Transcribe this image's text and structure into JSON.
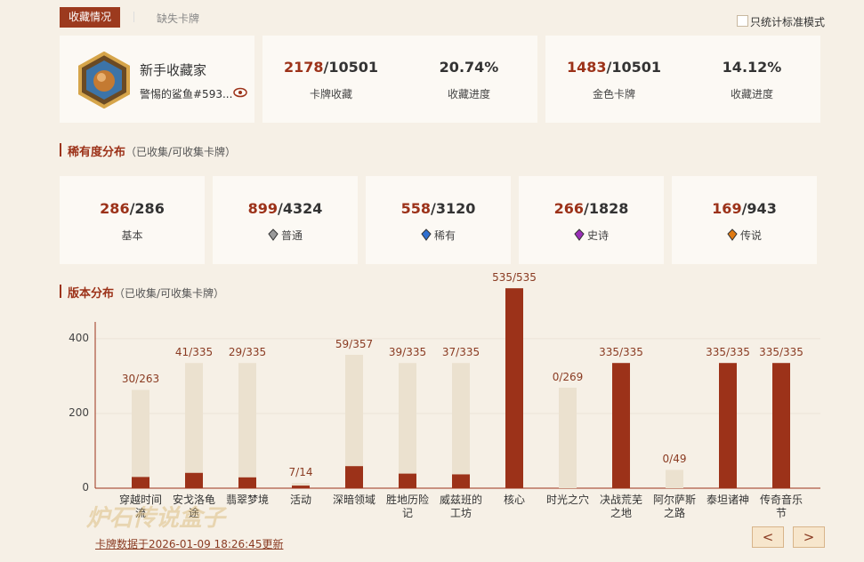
{
  "tabs": [
    "收藏情况",
    "缺失卡牌"
  ],
  "filter": "只统计标准模式",
  "profile": {
    "title": "新手收藏家",
    "name": "警惕的鲨鱼#593..."
  },
  "stats": [
    {
      "owned": "2178",
      "total": "/10501",
      "label": "卡牌收藏",
      "percent": "20.74%",
      "percent_label": "收藏进度"
    },
    {
      "owned": "1483",
      "total": "/10501",
      "label": "金色卡牌",
      "percent": "14.12%",
      "percent_label": "收藏进度"
    }
  ],
  "rarity_section": {
    "title": "稀有度分布",
    "note": "（已收集/可收集卡牌）"
  },
  "rarity": [
    {
      "owned": "286",
      "total": "/286",
      "label": "基本",
      "color": null
    },
    {
      "owned": "899",
      "total": "/4324",
      "label": "普通",
      "color": "#9a9a9a"
    },
    {
      "owned": "558",
      "total": "/3120",
      "label": "稀有",
      "color": "#2f6fd0"
    },
    {
      "owned": "266",
      "total": "/1828",
      "label": "史诗",
      "color": "#9a2fb8"
    },
    {
      "owned": "169",
      "total": "/943",
      "label": "传说",
      "color": "#e07a12"
    }
  ],
  "chart_data": {
    "type": "bar",
    "title": "版本分布",
    "subtitle": "（已收集/可收集卡牌）",
    "categories": [
      "穿越时间流",
      "安戈洛龟途",
      "翡翠梦境",
      "活动",
      "深暗领域",
      "胜地历险记",
      "威兹班的工坊",
      "核心",
      "时光之穴",
      "决战荒芜之地",
      "阿尔萨斯之路",
      "泰坦诸神",
      "传奇音乐节"
    ],
    "series": [
      {
        "color": "#ebe1cf",
        "values": [
          263,
          335,
          335,
          14,
          357,
          335,
          335,
          535,
          269,
          335,
          49,
          335,
          335
        ]
      },
      {
        "color": "#9c3219",
        "values": [
          30,
          41,
          29,
          7,
          59,
          39,
          37,
          535,
          0,
          335,
          0,
          335,
          335
        ],
        "value_labels": [
          "30/263",
          "41/335",
          "29/335",
          "7/14",
          "59/357",
          "39/335",
          "37/335",
          "535/535",
          "0/269",
          "335/335",
          "0/49",
          "335/335",
          "335/335"
        ]
      }
    ],
    "ylim": [
      0,
      445
    ],
    "yticks": [
      0,
      200,
      400
    ],
    "grid": true
  },
  "watermark": "炉石传说盒子",
  "footer": "卡牌数据于2026-01-09 18:26:45更新",
  "pager": [
    "<",
    ">"
  ]
}
